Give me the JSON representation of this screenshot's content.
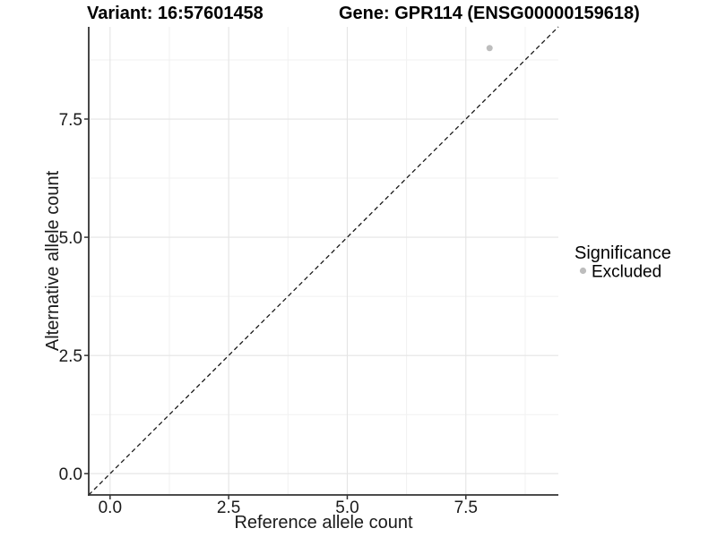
{
  "chart_data": {
    "type": "scatter",
    "titles": {
      "variant": "Variant: 16:57601458",
      "gene": "Gene: GPR114 (ENSG00000159618)"
    },
    "xlabel": "Reference allele count",
    "ylabel": "Alternative allele count",
    "xlim": [
      -0.45,
      9.45
    ],
    "ylim": [
      -0.45,
      9.45
    ],
    "x_ticks": [
      0,
      2.5,
      5,
      7.5
    ],
    "x_tick_labels": [
      "0.0",
      "2.5",
      "5.0",
      "7.5"
    ],
    "y_ticks": [
      0,
      2.5,
      5,
      7.5
    ],
    "y_tick_labels": [
      "0.0",
      "2.5",
      "5.0",
      "7.5"
    ],
    "x_minor_ticks": [
      1.25,
      3.75,
      6.25,
      8.75
    ],
    "y_minor_ticks": [
      1.25,
      3.75,
      6.25,
      8.75
    ],
    "grid": true,
    "series": [
      {
        "name": "Excluded",
        "color": "#bdbdbd",
        "points": [
          {
            "x": 8,
            "y": 9
          }
        ]
      }
    ],
    "reference_line": {
      "style": "dashed",
      "slope": 1,
      "intercept": 0,
      "color": "#1a1a1a"
    },
    "legend": {
      "title": "Significance",
      "position": "right",
      "items": [
        {
          "label": "Excluded",
          "color": "#bdbdbd",
          "marker": "circle"
        }
      ]
    },
    "colors": {
      "background": "#ffffff",
      "grid_major": "#e4e4e4",
      "grid_minor": "#f1f1f1",
      "axis_line": "#333333",
      "tick": "#333333"
    }
  }
}
